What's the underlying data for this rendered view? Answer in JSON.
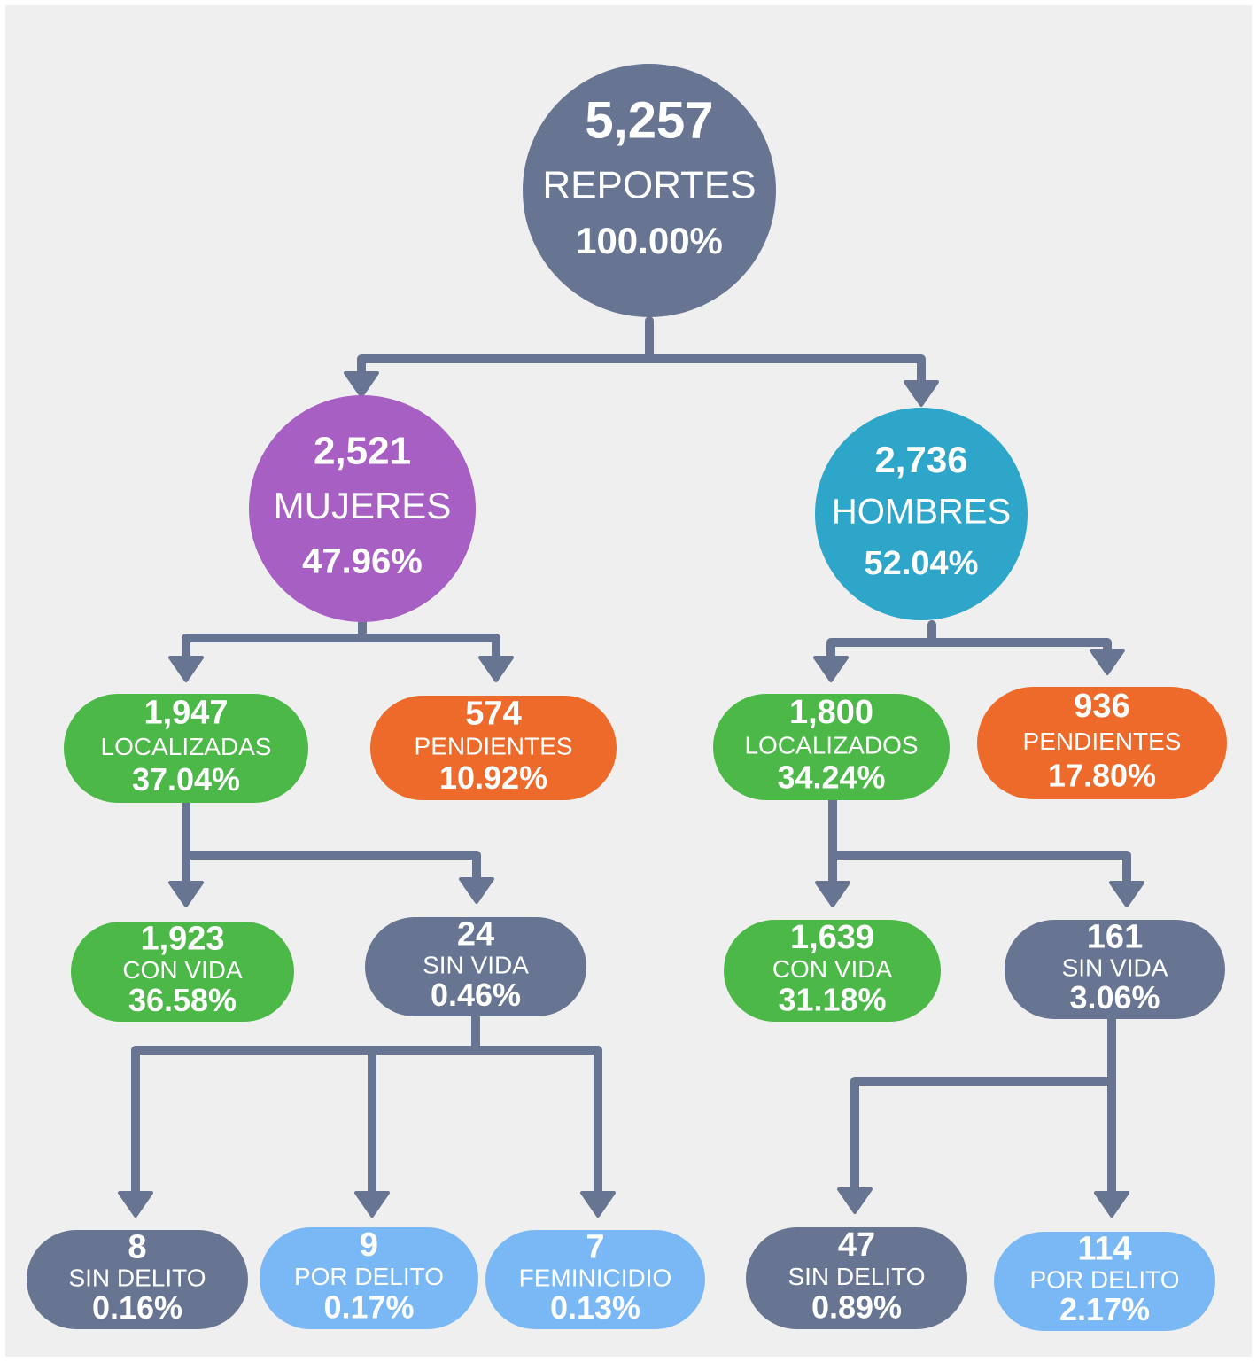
{
  "nodes": [
    {
      "value": "5,257",
      "label": "REPORTES",
      "percent": "100.00%"
    },
    {
      "value": "2,521",
      "label": "MUJERES",
      "percent": "47.96%"
    },
    {
      "value": "2,736",
      "label": "HOMBRES",
      "percent": "52.04%"
    },
    {
      "value": "1,947",
      "label": "LOCALIZADAS",
      "percent": "37.04%"
    },
    {
      "value": "574",
      "label": "PENDIENTES",
      "percent": "10.92%"
    },
    {
      "value": "1,800",
      "label": "LOCALIZADOS",
      "percent": "34.24%"
    },
    {
      "value": "936",
      "label": "PENDIENTES",
      "percent": "17.80%"
    },
    {
      "value": "1,923",
      "label": "CON VIDA",
      "percent": "36.58%"
    },
    {
      "value": "24",
      "label": "SIN VIDA",
      "percent": "0.46%"
    },
    {
      "value": "1,639",
      "label": "CON VIDA",
      "percent": "31.18%"
    },
    {
      "value": "161",
      "label": "SIN VIDA",
      "percent": "3.06%"
    },
    {
      "value": "8",
      "label": "SIN DELITO",
      "percent": "0.16%"
    },
    {
      "value": "9",
      "label": "POR DELITO",
      "percent": "0.17%"
    },
    {
      "value": "7",
      "label": "FEMINICIDIO",
      "percent": "0.13%"
    },
    {
      "value": "47",
      "label": "SIN DELITO",
      "percent": "0.89%"
    },
    {
      "value": "114",
      "label": "POR DELITO",
      "percent": "2.17%"
    }
  ]
}
